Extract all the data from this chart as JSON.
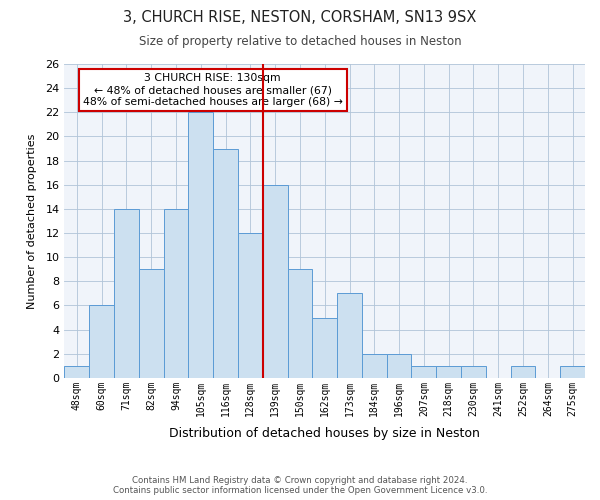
{
  "title": "3, CHURCH RISE, NESTON, CORSHAM, SN13 9SX",
  "subtitle": "Size of property relative to detached houses in Neston",
  "xlabel": "Distribution of detached houses by size in Neston",
  "ylabel": "Number of detached properties",
  "categories": [
    "48sqm",
    "60sqm",
    "71sqm",
    "82sqm",
    "94sqm",
    "105sqm",
    "116sqm",
    "128sqm",
    "139sqm",
    "150sqm",
    "162sqm",
    "173sqm",
    "184sqm",
    "196sqm",
    "207sqm",
    "218sqm",
    "230sqm",
    "241sqm",
    "252sqm",
    "264sqm",
    "275sqm"
  ],
  "values": [
    1,
    6,
    14,
    9,
    14,
    22,
    19,
    12,
    16,
    9,
    5,
    7,
    2,
    2,
    1,
    1,
    1,
    0,
    1,
    0,
    1
  ],
  "bar_color": "#cce0f0",
  "bar_edge_color": "#5b9bd5",
  "highlight_bar_index": 7,
  "highlight_line_color": "#cc0000",
  "ylim": [
    0,
    26
  ],
  "yticks": [
    0,
    2,
    4,
    6,
    8,
    10,
    12,
    14,
    16,
    18,
    20,
    22,
    24,
    26
  ],
  "annotation_title": "3 CHURCH RISE: 130sqm",
  "annotation_line1": "← 48% of detached houses are smaller (67)",
  "annotation_line2": "48% of semi-detached houses are larger (68) →",
  "annotation_box_color": "#ffffff",
  "annotation_box_edge": "#cc0000",
  "footer1": "Contains HM Land Registry data © Crown copyright and database right 2024.",
  "footer2": "Contains public sector information licensed under the Open Government Licence v3.0.",
  "bg_color": "#f0f4fa"
}
